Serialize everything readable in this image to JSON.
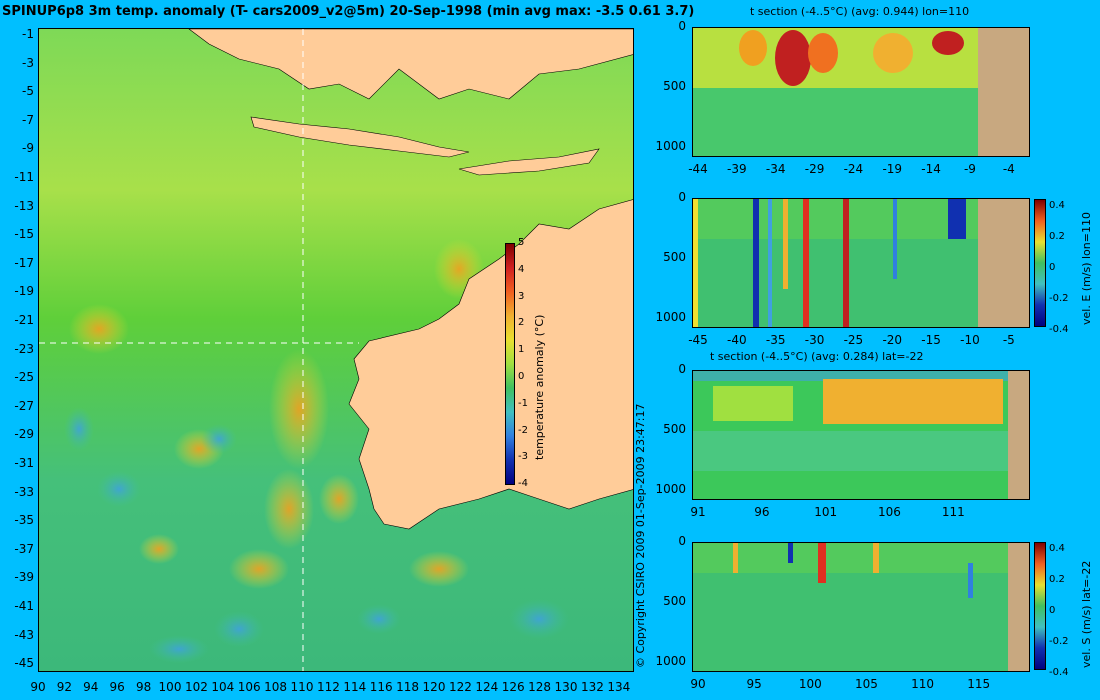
{
  "map": {
    "title": "SPINUP6p8 3m temp. anomaly (T- cars2009_v2@5m) 20-Sep-1998 (min avg max: -3.5 0.61 3.7)",
    "lat_ticks": [
      "-1",
      "-3",
      "-5",
      "-7",
      "-9",
      "-11",
      "-13",
      "-15",
      "-17",
      "-19",
      "-21",
      "-23",
      "-25",
      "-27",
      "-29",
      "-31",
      "-33",
      "-35",
      "-37",
      "-39",
      "-41",
      "-43",
      "-45"
    ],
    "lon_ticks": [
      "90",
      "92",
      "94",
      "96",
      "98",
      "100",
      "102",
      "104",
      "106",
      "108",
      "110",
      "112",
      "114",
      "116",
      "118",
      "120",
      "122",
      "124",
      "126",
      "128",
      "130",
      "132",
      "134"
    ],
    "crosshair": {
      "lon": 110,
      "lat": -22
    },
    "colorbar": {
      "label": "temperature anomaly (°C)",
      "ticks": [
        "5",
        "4",
        "3",
        "2",
        "1",
        "0",
        "-1",
        "-2",
        "-3",
        "-4"
      ]
    }
  },
  "copyright": "© Copyright CSIRO 2009   01-Sep-2009 23:47:17",
  "panels": [
    {
      "title": "t section (-4..5°C) (avg: 0.944) lon=110",
      "x_ticks": [
        "-44",
        "-39",
        "-34",
        "-29",
        "-24",
        "-19",
        "-14",
        "-9",
        "-4"
      ],
      "y_ticks": [
        "0",
        "500",
        "1000"
      ]
    },
    {
      "title": "",
      "x_ticks": [
        "-45",
        "-40",
        "-35",
        "-30",
        "-25",
        "-20",
        "-15",
        "-10",
        "-5"
      ],
      "y_ticks": [
        "0",
        "500",
        "1000"
      ],
      "colorbar": {
        "label": "vel. E (m/s) lon=110",
        "ticks": [
          "0.4",
          "0.2",
          "0",
          "-0.2",
          "-0.4"
        ]
      }
    },
    {
      "title": "t section (-4..5°C) (avg: 0.284) lat=-22",
      "x_ticks": [
        "91",
        "96",
        "101",
        "106",
        "111"
      ],
      "y_ticks": [
        "0",
        "500",
        "1000"
      ]
    },
    {
      "title": "",
      "x_ticks": [
        "90",
        "95",
        "100",
        "105",
        "110",
        "115"
      ],
      "y_ticks": [
        "0",
        "500",
        "1000"
      ],
      "colorbar": {
        "label": "vel. S (m/s) lat=-22",
        "ticks": [
          "0.4",
          "0.2",
          "0",
          "-0.2",
          "-0.4"
        ]
      }
    }
  ]
}
